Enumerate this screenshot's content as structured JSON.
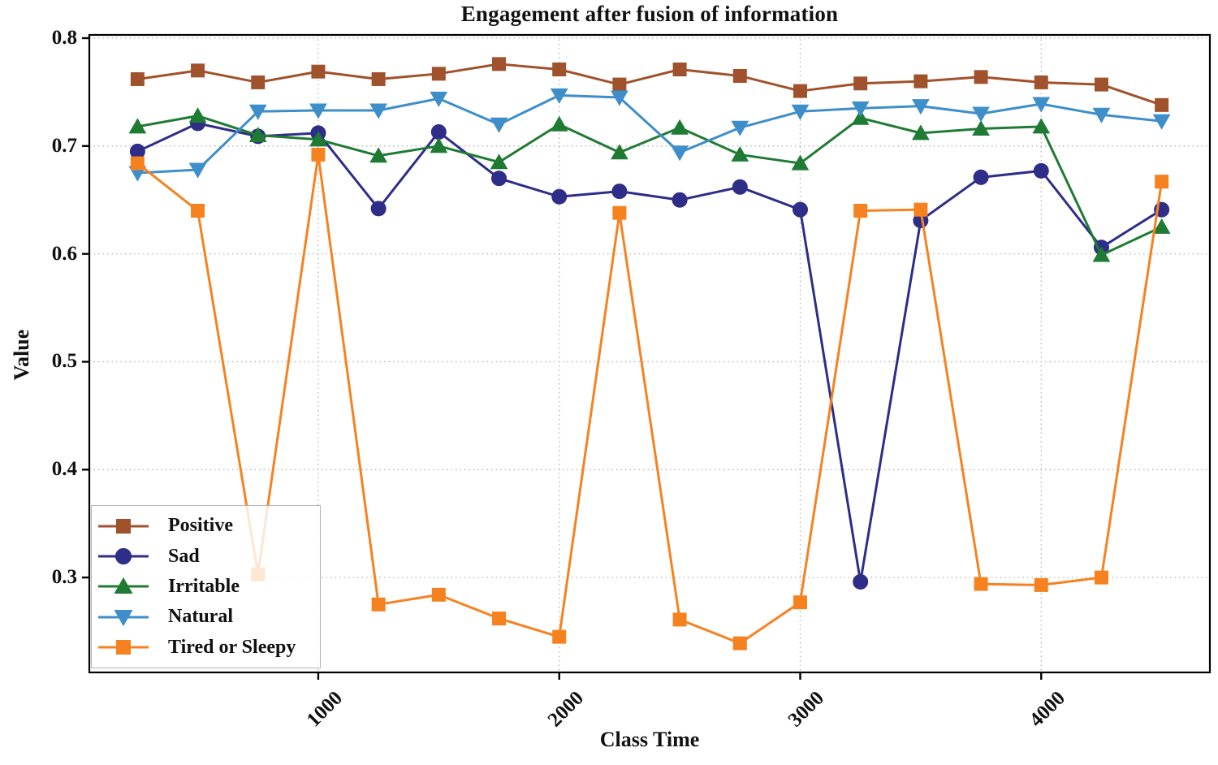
{
  "chart_data": {
    "type": "line",
    "title": "Engagement after fusion of information",
    "xlabel": "Class Time",
    "ylabel": "Value",
    "x": [
      250,
      500,
      750,
      1000,
      1250,
      1500,
      1750,
      2000,
      2250,
      2500,
      2750,
      3000,
      3250,
      3500,
      3750,
      4000,
      4250,
      4500
    ],
    "xlim": [
      50,
      4700
    ],
    "ylim": [
      0.212,
      0.803
    ],
    "x_ticks": [
      1000,
      2000,
      3000,
      4000
    ],
    "x_tick_labels": [
      "1000",
      "2000",
      "3000",
      "4000"
    ],
    "y_ticks": [
      0.3,
      0.4,
      0.5,
      0.6,
      0.7,
      0.8
    ],
    "y_tick_labels": [
      "0.3",
      "0.4",
      "0.5",
      "0.6",
      "0.7",
      "0.8"
    ],
    "grid": "dotted",
    "grid_color": "#b3b3b3",
    "axis_color": "#000000",
    "legend_position": "lower-left",
    "series": [
      {
        "name": "Positive",
        "color": "#A0522D",
        "marker": "square",
        "values": [
          0.762,
          0.77,
          0.759,
          0.769,
          0.762,
          0.767,
          0.776,
          0.771,
          0.757,
          0.771,
          0.765,
          0.751,
          0.758,
          0.76,
          0.764,
          0.759,
          0.757,
          0.738
        ]
      },
      {
        "name": "Sad",
        "color": "#2E2D88",
        "marker": "circle",
        "values": [
          0.695,
          0.721,
          0.709,
          0.712,
          0.642,
          0.713,
          0.67,
          0.653,
          0.658,
          0.65,
          0.662,
          0.641,
          0.296,
          0.631,
          0.671,
          0.677,
          0.606,
          0.641
        ]
      },
      {
        "name": "Irritable",
        "color": "#1F7B33",
        "marker": "triangle-up",
        "values": [
          0.718,
          0.728,
          0.71,
          0.706,
          0.691,
          0.7,
          0.685,
          0.72,
          0.694,
          0.717,
          0.692,
          0.684,
          0.726,
          0.712,
          0.716,
          0.718,
          0.599,
          0.625
        ]
      },
      {
        "name": "Natural",
        "color": "#3E8EC9",
        "marker": "triangle-down",
        "values": [
          0.675,
          0.678,
          0.732,
          0.733,
          0.733,
          0.744,
          0.72,
          0.747,
          0.745,
          0.694,
          0.717,
          0.732,
          0.735,
          0.737,
          0.73,
          0.739,
          0.729,
          0.723
        ]
      },
      {
        "name": "Tired or Sleepy",
        "color": "#F6821F",
        "marker": "square",
        "values": [
          0.684,
          0.64,
          0.303,
          0.692,
          0.275,
          0.284,
          0.262,
          0.245,
          0.638,
          0.261,
          0.239,
          0.277,
          0.64,
          0.641,
          0.294,
          0.293,
          0.3,
          0.667
        ]
      }
    ]
  }
}
